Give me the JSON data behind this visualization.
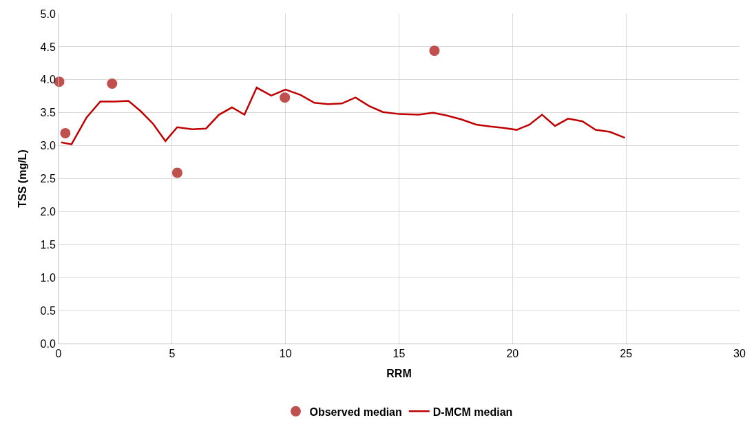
{
  "chart_data": {
    "type": "scatter",
    "xlabel": "RRM",
    "ylabel": "TSS (mg/L)",
    "xlim": [
      0,
      30
    ],
    "xticks": [
      0,
      5,
      10,
      15,
      20,
      25,
      30
    ],
    "ylim": [
      0,
      5
    ],
    "yticks": [
      {
        "value": 0,
        "label": "0.0"
      },
      {
        "value": 0.5,
        "label": "0.5"
      },
      {
        "value": 1,
        "label": "1.0"
      },
      {
        "value": 1.5,
        "label": "1.5"
      },
      {
        "value": 2,
        "label": "2.0"
      },
      {
        "value": 2.5,
        "label": "2.5"
      },
      {
        "value": 3,
        "label": "3.0"
      },
      {
        "value": 3.5,
        "label": "3.5"
      },
      {
        "value": 4,
        "label": "4.0"
      },
      {
        "value": 4.5,
        "label": "4.5"
      },
      {
        "value": 5,
        "label": "5.0"
      }
    ],
    "grid": true,
    "legend": "bottom",
    "series": [
      {
        "name": "Observed median",
        "marker": "circle",
        "color": "#c0504d",
        "x": [
          0.03,
          0.3,
          2.36,
          5.23,
          9.97,
          16.56
        ],
        "values": [
          3.97,
          3.19,
          3.94,
          2.59,
          3.73,
          4.44
        ]
      },
      {
        "name": "D-MCM median",
        "type": "line",
        "marker": "none",
        "line_style": "solid",
        "color": "#c00000",
        "x": [
          0.12,
          0.57,
          1.24,
          1.84,
          2.48,
          3.08,
          3.63,
          4.17,
          4.71,
          5.23,
          5.89,
          6.5,
          7.07,
          7.64,
          8.19,
          8.73,
          9.37,
          10.0,
          10.66,
          11.27,
          11.87,
          12.48,
          13.08,
          13.69,
          14.29,
          15.0,
          15.86,
          16.5,
          17.07,
          17.73,
          18.4,
          19.03,
          19.6,
          20.18,
          20.75,
          21.3,
          21.87,
          22.45,
          23.08,
          23.66,
          24.29,
          24.95
        ],
        "values": [
          3.05,
          3.02,
          3.43,
          3.67,
          3.67,
          3.68,
          3.52,
          3.33,
          3.07,
          3.28,
          3.25,
          3.26,
          3.47,
          3.58,
          3.47,
          3.88,
          3.76,
          3.85,
          3.77,
          3.65,
          3.63,
          3.64,
          3.73,
          3.6,
          3.51,
          3.48,
          3.47,
          3.5,
          3.46,
          3.4,
          3.32,
          3.29,
          3.27,
          3.24,
          3.32,
          3.47,
          3.3,
          3.41,
          3.37,
          3.24,
          3.21,
          3.12
        ]
      }
    ]
  }
}
